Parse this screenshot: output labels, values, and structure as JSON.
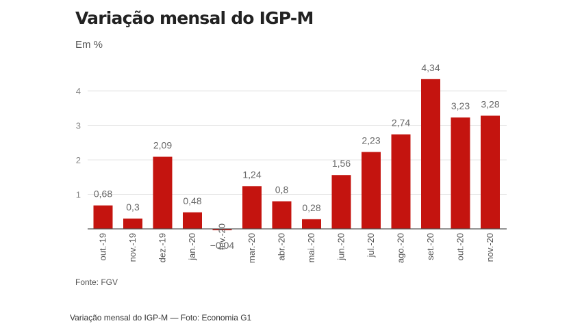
{
  "chart_data": {
    "type": "bar",
    "title": "Variação mensal do IGP-M",
    "subtitle": "Em %",
    "categories": [
      "out.-19",
      "nov.-19",
      "dez.-19",
      "jan.-20",
      "fev.-20",
      "mar.-20",
      "abr.-20",
      "mai.-20",
      "jun.-20",
      "jul.-20",
      "ago.-20",
      "set.-20",
      "out.-20",
      "nov.-20"
    ],
    "values": [
      0.68,
      0.3,
      2.09,
      0.48,
      -0.04,
      1.24,
      0.8,
      0.28,
      1.56,
      2.23,
      2.74,
      4.34,
      3.23,
      3.28
    ],
    "value_labels": [
      "0,68",
      "0,3",
      "2,09",
      "0,48",
      "−0,04",
      "1,24",
      "0,8",
      "0,28",
      "1,56",
      "2,23",
      "2,74",
      "4,34",
      "3,23",
      "3,28"
    ],
    "yticks": [
      "1",
      "2",
      "3",
      "4"
    ],
    "ytick_values": [
      1,
      2,
      3,
      4
    ],
    "ylim": [
      -0.1,
      4.5
    ],
    "grid": true,
    "bar_color": "#c4140f"
  },
  "source": "Fonte: FGV",
  "caption": "Variação mensal do IGP-M — Foto: Economia G1"
}
